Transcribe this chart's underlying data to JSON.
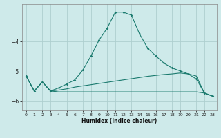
{
  "xlabel": "Humidex (Indice chaleur)",
  "background_color": "#ceeaea",
  "grid_color": "#aecfcf",
  "line_color": "#1a7a6e",
  "x_values": [
    0,
    1,
    2,
    3,
    4,
    5,
    6,
    7,
    8,
    9,
    10,
    11,
    12,
    13,
    14,
    15,
    16,
    17,
    18,
    19,
    20,
    21,
    22,
    23
  ],
  "line1": [
    -5.15,
    -5.65,
    -5.35,
    -5.65,
    -5.55,
    -5.42,
    -5.28,
    -4.95,
    -4.48,
    -3.95,
    -3.55,
    -3.02,
    -3.02,
    -3.12,
    -3.75,
    -4.22,
    -4.48,
    -4.72,
    -4.88,
    -4.98,
    -5.08,
    -5.25,
    -5.72,
    -5.82
  ],
  "line2": [
    -5.15,
    -5.65,
    -5.35,
    -5.65,
    -5.62,
    -5.58,
    -5.52,
    -5.48,
    -5.44,
    -5.4,
    -5.36,
    -5.32,
    -5.28,
    -5.24,
    -5.2,
    -5.16,
    -5.13,
    -5.1,
    -5.08,
    -5.05,
    -5.08,
    -5.15,
    -5.72,
    -5.82
  ],
  "line3": [
    -5.15,
    -5.65,
    -5.35,
    -5.65,
    -5.68,
    -5.68,
    -5.68,
    -5.68,
    -5.68,
    -5.68,
    -5.68,
    -5.68,
    -5.68,
    -5.68,
    -5.68,
    -5.68,
    -5.68,
    -5.68,
    -5.68,
    -5.68,
    -5.68,
    -5.68,
    -5.72,
    -5.82
  ],
  "ylim": [
    -6.3,
    -2.75
  ],
  "xlim": [
    -0.5,
    23.5
  ],
  "yticks": [
    -6,
    -5,
    -4
  ],
  "xticks": [
    0,
    1,
    2,
    3,
    4,
    5,
    6,
    7,
    8,
    9,
    10,
    11,
    12,
    13,
    14,
    15,
    16,
    17,
    18,
    19,
    20,
    21,
    22,
    23
  ],
  "figsize": [
    3.2,
    2.0
  ],
  "dpi": 100
}
